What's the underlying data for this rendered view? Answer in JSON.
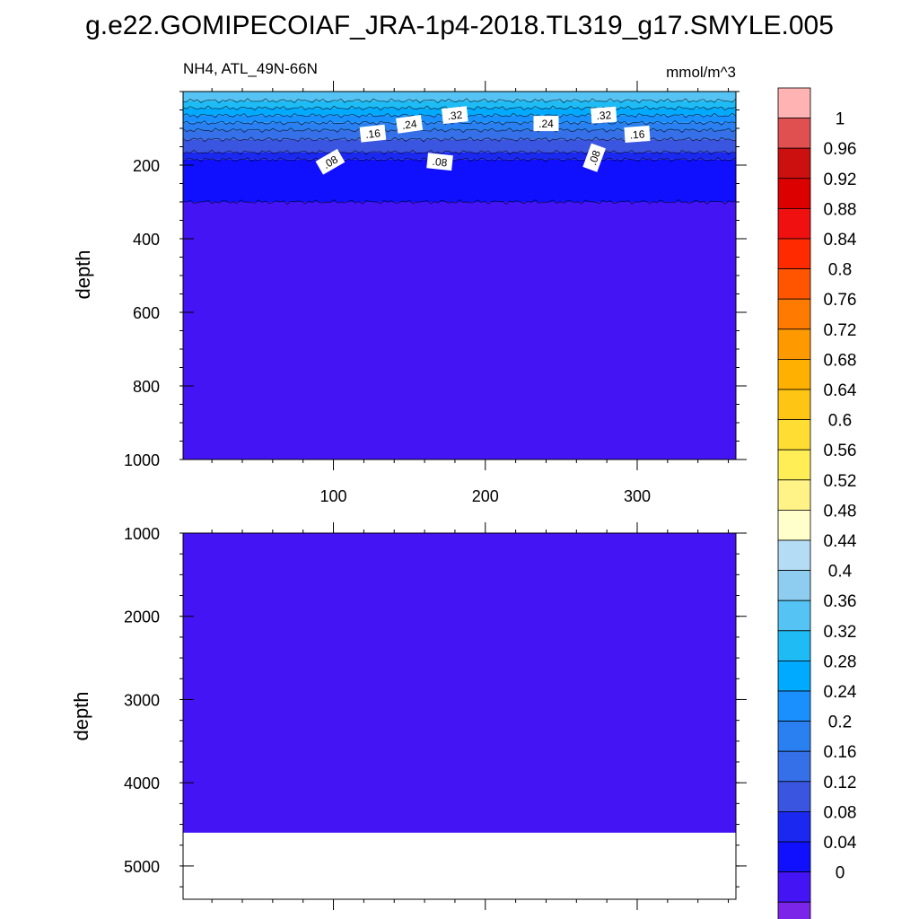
{
  "title": "g.e22.GOMIPECOIAF_JRA-1p4-2018.TL319_g17.SMYLE.005",
  "chart_data": {
    "type": "contour",
    "variable": "NH4, ATL_49N-66N",
    "units": "mmol/m^3",
    "x_ticks": [
      "100",
      "200",
      "300"
    ],
    "x_tick_values": [
      100,
      200,
      300
    ],
    "xlim": [
      1,
      365
    ],
    "panels": [
      {
        "name": "upper",
        "ylabel": "depth",
        "ylim": [
          0,
          1000
        ],
        "y_ticks": [
          "200",
          "400",
          "600",
          "800",
          "1000"
        ],
        "y_tick_values": [
          200,
          400,
          600,
          800,
          1000
        ],
        "layers": [
          {
            "top": 0,
            "bottom": 25,
            "value": 0.38
          },
          {
            "top": 25,
            "bottom": 45,
            "value": 0.34
          },
          {
            "top": 45,
            "bottom": 65,
            "value": 0.3
          },
          {
            "top": 65,
            "bottom": 85,
            "value": 0.26
          },
          {
            "top": 85,
            "bottom": 105,
            "value": 0.22
          },
          {
            "top": 105,
            "bottom": 130,
            "value": 0.18
          },
          {
            "top": 130,
            "bottom": 165,
            "value": 0.14
          },
          {
            "top": 165,
            "bottom": 185,
            "value": 0.1
          },
          {
            "top": 185,
            "bottom": 300,
            "value": 0.06
          },
          {
            "top": 300,
            "bottom": 1000,
            "value": 0.02
          }
        ],
        "contour_labels": [
          {
            "text": ".32",
            "x": 180,
            "depth": 65,
            "angle": -6
          },
          {
            "text": ".32",
            "x": 278,
            "depth": 65,
            "angle": -4
          },
          {
            "text": ".24",
            "x": 150,
            "depth": 90,
            "angle": -8
          },
          {
            "text": ".24",
            "x": 240,
            "depth": 88,
            "angle": 0
          },
          {
            "text": ".16",
            "x": 126,
            "depth": 115,
            "angle": -6
          },
          {
            "text": ".16",
            "x": 300,
            "depth": 117,
            "angle": -4
          },
          {
            "text": ".08",
            "x": 98,
            "depth": 192,
            "angle": -30
          },
          {
            "text": ".08",
            "x": 170,
            "depth": 192,
            "angle": 6
          },
          {
            "text": ".08",
            "x": 272,
            "depth": 180,
            "angle": -70
          }
        ]
      },
      {
        "name": "lower",
        "ylabel": "depth",
        "ylim": [
          1000,
          5400
        ],
        "y_ticks": [
          "1000",
          "2000",
          "3000",
          "4000",
          "5000"
        ],
        "y_tick_values": [
          1000,
          2000,
          3000,
          4000,
          5000
        ],
        "data_bottom": 4600,
        "value": 0.02
      }
    ],
    "colorbar": {
      "labels": [
        "1",
        "0.96",
        "0.92",
        "0.88",
        "0.84",
        "0.8",
        "0.76",
        "0.72",
        "0.68",
        "0.64",
        "0.6",
        "0.56",
        "0.52",
        "0.48",
        "0.44",
        "0.4",
        "0.36",
        "0.32",
        "0.28",
        "0.24",
        "0.2",
        "0.16",
        "0.12",
        "0.08",
        "0.04",
        "0"
      ],
      "level_values": [
        1,
        0.96,
        0.92,
        0.88,
        0.84,
        0.8,
        0.76,
        0.72,
        0.68,
        0.64,
        0.6,
        0.56,
        0.52,
        0.48,
        0.44,
        0.4,
        0.36,
        0.32,
        0.28,
        0.24,
        0.2,
        0.16,
        0.12,
        0.08,
        0.04,
        0
      ],
      "colors": [
        "#ffb3b3",
        "#e05050",
        "#cc1010",
        "#dd0000",
        "#f01010",
        "#ff2a00",
        "#ff5500",
        "#ff7a00",
        "#ff9900",
        "#ffb000",
        "#ffc515",
        "#ffdd33",
        "#ffee55",
        "#fff388",
        "#ffffcc",
        "#b4dcf4",
        "#8ecdf0",
        "#55c4f5",
        "#1ebbf5",
        "#00aaff",
        "#1a90ff",
        "#2a80f0",
        "#3570e8",
        "#3a55e0",
        "#1a28f0",
        "#1010ff",
        "#4514f5",
        "#7b25e8"
      ]
    }
  }
}
